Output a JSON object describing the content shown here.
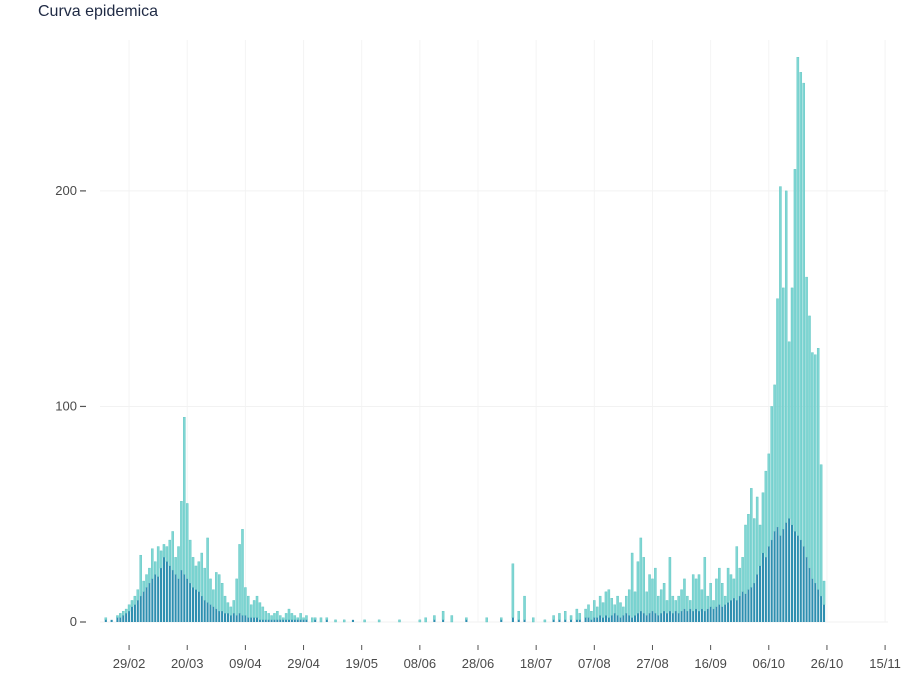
{
  "chart_data": {
    "type": "bar",
    "title": "Curva epidemica",
    "xlabel": "",
    "ylabel": "",
    "grid": true,
    "stacked": true,
    "ylim": [
      0,
      270
    ],
    "yticks": [
      0,
      100,
      200
    ],
    "x_range": [
      "2020-02-19",
      "2020-11-16"
    ],
    "x_ticks": [
      {
        "date": "2020-02-29",
        "label": "29/02"
      },
      {
        "date": "2020-03-20",
        "label": "20/03"
      },
      {
        "date": "2020-04-09",
        "label": "09/04"
      },
      {
        "date": "2020-04-29",
        "label": "29/04"
      },
      {
        "date": "2020-05-19",
        "label": "19/05"
      },
      {
        "date": "2020-06-08",
        "label": "08/06"
      },
      {
        "date": "2020-06-28",
        "label": "28/06"
      },
      {
        "date": "2020-07-18",
        "label": "18/07"
      },
      {
        "date": "2020-08-07",
        "label": "07/08"
      },
      {
        "date": "2020-08-27",
        "label": "27/08"
      },
      {
        "date": "2020-09-16",
        "label": "16/09"
      },
      {
        "date": "2020-10-06",
        "label": "06/10"
      },
      {
        "date": "2020-10-26",
        "label": "26/10"
      },
      {
        "date": "2020-11-15",
        "label": "15/11"
      }
    ],
    "colors": {
      "dark": "#2e8fb0",
      "light": "#7fd6d3"
    },
    "series_note_values": "each point: [date, dark_value, total_value]",
    "points": [
      [
        "2020-02-21",
        1,
        2
      ],
      [
        "2020-02-23",
        1,
        1
      ],
      [
        "2020-02-25",
        2,
        3
      ],
      [
        "2020-02-26",
        2,
        4
      ],
      [
        "2020-02-27",
        3,
        5
      ],
      [
        "2020-02-28",
        4,
        6
      ],
      [
        "2020-02-29",
        5,
        8
      ],
      [
        "2020-03-01",
        7,
        10
      ],
      [
        "2020-03-02",
        8,
        12
      ],
      [
        "2020-03-03",
        10,
        15
      ],
      [
        "2020-03-04",
        12,
        31
      ],
      [
        "2020-03-05",
        14,
        19
      ],
      [
        "2020-03-06",
        16,
        22
      ],
      [
        "2020-03-07",
        18,
        25
      ],
      [
        "2020-03-08",
        20,
        34
      ],
      [
        "2020-03-09",
        22,
        28
      ],
      [
        "2020-03-10",
        21,
        35
      ],
      [
        "2020-03-11",
        25,
        33
      ],
      [
        "2020-03-12",
        30,
        36
      ],
      [
        "2020-03-13",
        28,
        35
      ],
      [
        "2020-03-14",
        26,
        38
      ],
      [
        "2020-03-15",
        24,
        42
      ],
      [
        "2020-03-16",
        22,
        30
      ],
      [
        "2020-03-17",
        20,
        35
      ],
      [
        "2020-03-18",
        24,
        56
      ],
      [
        "2020-03-19",
        22,
        95
      ],
      [
        "2020-03-20",
        20,
        55
      ],
      [
        "2020-03-21",
        18,
        38
      ],
      [
        "2020-03-22",
        16,
        30
      ],
      [
        "2020-03-23",
        15,
        26
      ],
      [
        "2020-03-24",
        14,
        28
      ],
      [
        "2020-03-25",
        12,
        32
      ],
      [
        "2020-03-26",
        10,
        25
      ],
      [
        "2020-03-27",
        9,
        39
      ],
      [
        "2020-03-28",
        8,
        20
      ],
      [
        "2020-03-29",
        7,
        15
      ],
      [
        "2020-03-30",
        6,
        23
      ],
      [
        "2020-03-31",
        5,
        22
      ],
      [
        "2020-04-01",
        5,
        18
      ],
      [
        "2020-04-02",
        4,
        12
      ],
      [
        "2020-04-03",
        4,
        9
      ],
      [
        "2020-04-04",
        3,
        7
      ],
      [
        "2020-04-05",
        4,
        10
      ],
      [
        "2020-04-06",
        3,
        20
      ],
      [
        "2020-04-07",
        4,
        36
      ],
      [
        "2020-04-08",
        3,
        43
      ],
      [
        "2020-04-09",
        3,
        16
      ],
      [
        "2020-04-10",
        2,
        12
      ],
      [
        "2020-04-11",
        2,
        8
      ],
      [
        "2020-04-12",
        2,
        10
      ],
      [
        "2020-04-13",
        2,
        12
      ],
      [
        "2020-04-14",
        1,
        9
      ],
      [
        "2020-04-15",
        1,
        7
      ],
      [
        "2020-04-16",
        1,
        5
      ],
      [
        "2020-04-17",
        1,
        4
      ],
      [
        "2020-04-18",
        1,
        3
      ],
      [
        "2020-04-19",
        1,
        4
      ],
      [
        "2020-04-20",
        1,
        5
      ],
      [
        "2020-04-21",
        1,
        3
      ],
      [
        "2020-04-22",
        1,
        2
      ],
      [
        "2020-04-23",
        1,
        4
      ],
      [
        "2020-04-24",
        1,
        6
      ],
      [
        "2020-04-25",
        1,
        4
      ],
      [
        "2020-04-26",
        1,
        3
      ],
      [
        "2020-04-27",
        1,
        2
      ],
      [
        "2020-04-28",
        1,
        4
      ],
      [
        "2020-04-29",
        1,
        2
      ],
      [
        "2020-04-30",
        1,
        3
      ],
      [
        "2020-05-02",
        0,
        2
      ],
      [
        "2020-05-03",
        1,
        2
      ],
      [
        "2020-05-05",
        0,
        2
      ],
      [
        "2020-05-07",
        1,
        2
      ],
      [
        "2020-05-10",
        0,
        1
      ],
      [
        "2020-05-13",
        0,
        1
      ],
      [
        "2020-05-16",
        1,
        1
      ],
      [
        "2020-05-20",
        0,
        1
      ],
      [
        "2020-05-25",
        0,
        1
      ],
      [
        "2020-06-01",
        0,
        1
      ],
      [
        "2020-06-08",
        0,
        1
      ],
      [
        "2020-06-10",
        0,
        2
      ],
      [
        "2020-06-13",
        1,
        3
      ],
      [
        "2020-06-16",
        1,
        5
      ],
      [
        "2020-06-19",
        0,
        3
      ],
      [
        "2020-06-24",
        1,
        2
      ],
      [
        "2020-07-01",
        0,
        2
      ],
      [
        "2020-07-06",
        1,
        2
      ],
      [
        "2020-07-10",
        2,
        27
      ],
      [
        "2020-07-12",
        1,
        5
      ],
      [
        "2020-07-14",
        1,
        12
      ],
      [
        "2020-07-17",
        0,
        2
      ],
      [
        "2020-07-21",
        0,
        1
      ],
      [
        "2020-07-24",
        1,
        3
      ],
      [
        "2020-07-26",
        1,
        4
      ],
      [
        "2020-07-28",
        1,
        5
      ],
      [
        "2020-07-30",
        1,
        3
      ],
      [
        "2020-08-01",
        1,
        6
      ],
      [
        "2020-08-02",
        1,
        4
      ],
      [
        "2020-08-04",
        2,
        6
      ],
      [
        "2020-08-05",
        2,
        8
      ],
      [
        "2020-08-06",
        1,
        5
      ],
      [
        "2020-08-07",
        2,
        10
      ],
      [
        "2020-08-08",
        2,
        7
      ],
      [
        "2020-08-09",
        3,
        12
      ],
      [
        "2020-08-10",
        2,
        9
      ],
      [
        "2020-08-11",
        3,
        14
      ],
      [
        "2020-08-12",
        2,
        15
      ],
      [
        "2020-08-13",
        3,
        11
      ],
      [
        "2020-08-14",
        4,
        8
      ],
      [
        "2020-08-15",
        3,
        12
      ],
      [
        "2020-08-16",
        2,
        9
      ],
      [
        "2020-08-17",
        3,
        7
      ],
      [
        "2020-08-18",
        4,
        12
      ],
      [
        "2020-08-19",
        3,
        15
      ],
      [
        "2020-08-20",
        2,
        32
      ],
      [
        "2020-08-21",
        3,
        14
      ],
      [
        "2020-08-22",
        4,
        28
      ],
      [
        "2020-08-23",
        5,
        39
      ],
      [
        "2020-08-24",
        4,
        30
      ],
      [
        "2020-08-25",
        3,
        14
      ],
      [
        "2020-08-26",
        4,
        22
      ],
      [
        "2020-08-27",
        5,
        20
      ],
      [
        "2020-08-28",
        4,
        25
      ],
      [
        "2020-08-29",
        3,
        12
      ],
      [
        "2020-08-30",
        4,
        15
      ],
      [
        "2020-08-31",
        5,
        18
      ],
      [
        "2020-09-01",
        4,
        10
      ],
      [
        "2020-09-02",
        5,
        30
      ],
      [
        "2020-09-03",
        4,
        12
      ],
      [
        "2020-09-04",
        5,
        10
      ],
      [
        "2020-09-05",
        4,
        12
      ],
      [
        "2020-09-06",
        5,
        15
      ],
      [
        "2020-09-07",
        6,
        20
      ],
      [
        "2020-09-08",
        5,
        12
      ],
      [
        "2020-09-09",
        6,
        10
      ],
      [
        "2020-09-10",
        5,
        22
      ],
      [
        "2020-09-11",
        6,
        20
      ],
      [
        "2020-09-12",
        5,
        22
      ],
      [
        "2020-09-13",
        6,
        15
      ],
      [
        "2020-09-14",
        5,
        30
      ],
      [
        "2020-09-15",
        6,
        12
      ],
      [
        "2020-09-16",
        7,
        18
      ],
      [
        "2020-09-17",
        6,
        10
      ],
      [
        "2020-09-18",
        7,
        20
      ],
      [
        "2020-09-19",
        8,
        25
      ],
      [
        "2020-09-20",
        7,
        18
      ],
      [
        "2020-09-21",
        8,
        12
      ],
      [
        "2020-09-22",
        9,
        25
      ],
      [
        "2020-09-23",
        10,
        22
      ],
      [
        "2020-09-24",
        11,
        20
      ],
      [
        "2020-09-25",
        10,
        35
      ],
      [
        "2020-09-26",
        12,
        25
      ],
      [
        "2020-09-27",
        14,
        30
      ],
      [
        "2020-09-28",
        13,
        45
      ],
      [
        "2020-09-29",
        15,
        50
      ],
      [
        "2020-09-30",
        16,
        62
      ],
      [
        "2020-10-01",
        18,
        48
      ],
      [
        "2020-10-02",
        22,
        58
      ],
      [
        "2020-10-03",
        26,
        45
      ],
      [
        "2020-10-04",
        32,
        60
      ],
      [
        "2020-10-05",
        30,
        70
      ],
      [
        "2020-10-06",
        35,
        78
      ],
      [
        "2020-10-07",
        38,
        100
      ],
      [
        "2020-10-08",
        42,
        110
      ],
      [
        "2020-10-09",
        44,
        150
      ],
      [
        "2020-10-10",
        40,
        202
      ],
      [
        "2020-10-11",
        43,
        155
      ],
      [
        "2020-10-12",
        46,
        200
      ],
      [
        "2020-10-13",
        48,
        130
      ],
      [
        "2020-10-14",
        45,
        155
      ],
      [
        "2020-10-15",
        42,
        210
      ],
      [
        "2020-10-16",
        40,
        262
      ],
      [
        "2020-10-17",
        38,
        255
      ],
      [
        "2020-10-18",
        35,
        250
      ],
      [
        "2020-10-19",
        30,
        160
      ],
      [
        "2020-10-20",
        25,
        142
      ],
      [
        "2020-10-21",
        20,
        125
      ],
      [
        "2020-10-22",
        18,
        124
      ],
      [
        "2020-10-23",
        15,
        127
      ],
      [
        "2020-10-24",
        12,
        73
      ],
      [
        "2020-10-25",
        8,
        19
      ]
    ]
  }
}
